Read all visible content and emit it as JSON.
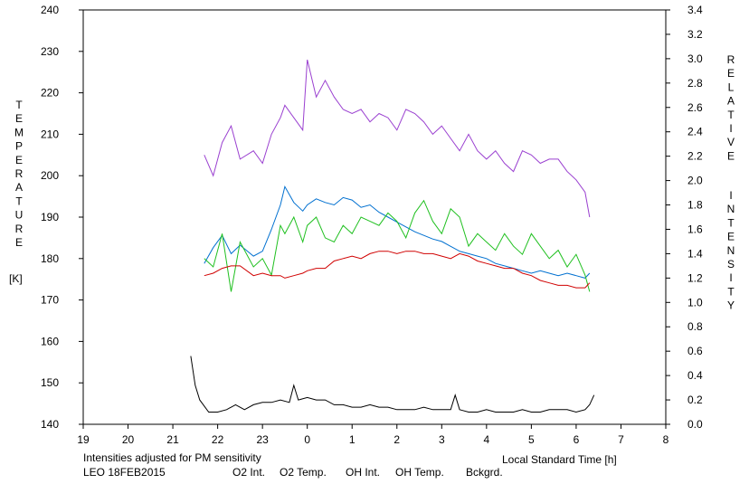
{
  "chart_data": {
    "type": "line",
    "left_axis_label_letters": [
      "T",
      "E",
      "M",
      "P",
      "E",
      "R",
      "A",
      "T",
      "U",
      "R",
      "E"
    ],
    "left_axis_unit": "[K]",
    "right_axis_label_word1": [
      "R",
      "E",
      "L",
      "A",
      "T",
      "I",
      "V",
      "E"
    ],
    "right_axis_label_word2": [
      "I",
      "N",
      "T",
      "E",
      "N",
      "S",
      "I",
      "T",
      "Y"
    ],
    "xlabel": "Local Standard Time [h]",
    "note": "Intensities adjusted for PM sensitivity",
    "station": "LEO 18FEB2015",
    "x_ticks": [
      19,
      20,
      21,
      22,
      23,
      0,
      1,
      2,
      3,
      4,
      5,
      6,
      7,
      8
    ],
    "xlim": [
      19,
      32
    ],
    "y_left_ticks": [
      140,
      150,
      160,
      170,
      180,
      190,
      200,
      210,
      220,
      230,
      240
    ],
    "y_left_lim": [
      140,
      240
    ],
    "y_right_ticks": [
      "0.0",
      "0.2",
      "0.4",
      "0.6",
      "0.8",
      "1.0",
      "1.2",
      "1.4",
      "1.6",
      "1.8",
      "2.0",
      "2.2",
      "2.4",
      "2.6",
      "2.8",
      "3.0",
      "3.2",
      "3.4"
    ],
    "y_right_lim": [
      0,
      3.4
    ],
    "legend": [
      {
        "key": "o2int",
        "label": "O2 Int.",
        "color": "#0070d0"
      },
      {
        "key": "o2temp",
        "label": "O2 Temp.",
        "color": "#9a40d0"
      },
      {
        "key": "ohint",
        "label": "OH Int.",
        "color": "#d00000"
      },
      {
        "key": "ohtemp",
        "label": "OH Temp.",
        "color": "#20c020"
      },
      {
        "key": "bck",
        "label": "Bckgrd.",
        "color": "#000000"
      }
    ],
    "note_color": "#20c020",
    "series": [
      {
        "key": "o2temp",
        "axis": "left",
        "color": "#9a40d0",
        "x": [
          21.7,
          21.9,
          22.1,
          22.3,
          22.5,
          22.8,
          23.0,
          23.2,
          23.4,
          23.5,
          23.7,
          23.9,
          24.0,
          24.2,
          24.4,
          24.6,
          24.8,
          25.0,
          25.2,
          25.4,
          25.6,
          25.8,
          26.0,
          26.2,
          26.4,
          26.6,
          26.8,
          27.0,
          27.2,
          27.4,
          27.6,
          27.8,
          28.0,
          28.2,
          28.4,
          28.6,
          28.8,
          29.0,
          29.2,
          29.4,
          29.6,
          29.8,
          30.0,
          30.2,
          30.3
        ],
        "y": [
          205,
          200,
          208,
          212,
          204,
          206,
          203,
          210,
          214,
          217,
          214,
          211,
          228,
          219,
          223,
          219,
          216,
          215,
          216,
          213,
          215,
          214,
          211,
          216,
          215,
          213,
          210,
          212,
          209,
          206,
          210,
          206,
          204,
          206,
          203,
          201,
          206,
          205,
          203,
          204,
          204,
          201,
          199,
          196,
          190
        ]
      },
      {
        "key": "o2int",
        "axis": "right",
        "color": "#0070d0",
        "x": [
          21.7,
          21.9,
          22.1,
          22.3,
          22.5,
          22.8,
          23.0,
          23.2,
          23.4,
          23.5,
          23.7,
          23.9,
          24.0,
          24.2,
          24.4,
          24.6,
          24.8,
          25.0,
          25.2,
          25.4,
          25.6,
          25.8,
          26.0,
          26.2,
          26.4,
          26.6,
          26.8,
          27.0,
          27.2,
          27.4,
          27.6,
          27.8,
          28.0,
          28.2,
          28.4,
          28.6,
          28.8,
          29.0,
          29.2,
          29.4,
          29.6,
          29.8,
          30.0,
          30.2,
          30.3
        ],
        "y": [
          1.32,
          1.45,
          1.55,
          1.4,
          1.47,
          1.38,
          1.42,
          1.6,
          1.8,
          1.95,
          1.82,
          1.75,
          1.8,
          1.85,
          1.82,
          1.8,
          1.86,
          1.84,
          1.78,
          1.8,
          1.74,
          1.7,
          1.66,
          1.62,
          1.58,
          1.55,
          1.52,
          1.5,
          1.46,
          1.42,
          1.4,
          1.38,
          1.36,
          1.32,
          1.3,
          1.28,
          1.26,
          1.24,
          1.26,
          1.24,
          1.22,
          1.24,
          1.22,
          1.2,
          1.24
        ]
      },
      {
        "key": "ohtemp",
        "axis": "left",
        "color": "#20c020",
        "x": [
          21.7,
          21.9,
          22.1,
          22.3,
          22.5,
          22.8,
          23.0,
          23.2,
          23.4,
          23.5,
          23.7,
          23.9,
          24.0,
          24.2,
          24.4,
          24.6,
          24.8,
          25.0,
          25.2,
          25.4,
          25.6,
          25.8,
          26.0,
          26.2,
          26.4,
          26.6,
          26.8,
          27.0,
          27.2,
          27.4,
          27.6,
          27.8,
          28.0,
          28.2,
          28.4,
          28.6,
          28.8,
          29.0,
          29.2,
          29.4,
          29.6,
          29.8,
          30.0,
          30.2,
          30.3
        ],
        "y": [
          180,
          178,
          186,
          172,
          184,
          178,
          180,
          176,
          188,
          186,
          190,
          184,
          188,
          190,
          185,
          184,
          188,
          186,
          190,
          189,
          188,
          191,
          189,
          185,
          191,
          194,
          189,
          186,
          192,
          190,
          183,
          186,
          184,
          182,
          186,
          183,
          181,
          186,
          183,
          180,
          182,
          178,
          181,
          176,
          172
        ]
      },
      {
        "key": "ohint",
        "axis": "right",
        "color": "#d00000",
        "x": [
          21.7,
          21.9,
          22.1,
          22.3,
          22.5,
          22.8,
          23.0,
          23.2,
          23.4,
          23.5,
          23.7,
          23.9,
          24.0,
          24.2,
          24.4,
          24.6,
          24.8,
          25.0,
          25.2,
          25.4,
          25.6,
          25.8,
          26.0,
          26.2,
          26.4,
          26.6,
          26.8,
          27.0,
          27.2,
          27.4,
          27.6,
          27.8,
          28.0,
          28.2,
          28.4,
          28.6,
          28.8,
          29.0,
          29.2,
          29.4,
          29.6,
          29.8,
          30.0,
          30.2,
          30.3
        ],
        "y": [
          1.22,
          1.24,
          1.28,
          1.3,
          1.3,
          1.22,
          1.24,
          1.22,
          1.22,
          1.2,
          1.22,
          1.24,
          1.26,
          1.28,
          1.28,
          1.34,
          1.36,
          1.38,
          1.36,
          1.4,
          1.42,
          1.42,
          1.4,
          1.42,
          1.42,
          1.4,
          1.4,
          1.38,
          1.36,
          1.4,
          1.38,
          1.34,
          1.32,
          1.3,
          1.28,
          1.28,
          1.24,
          1.22,
          1.18,
          1.16,
          1.14,
          1.14,
          1.12,
          1.12,
          1.16
        ]
      },
      {
        "key": "bck",
        "axis": "right",
        "color": "#000000",
        "x": [
          21.4,
          21.5,
          21.6,
          21.8,
          22.0,
          22.2,
          22.4,
          22.6,
          22.8,
          23.0,
          23.2,
          23.4,
          23.6,
          23.7,
          23.8,
          24.0,
          24.2,
          24.4,
          24.6,
          24.8,
          25.0,
          25.2,
          25.4,
          25.6,
          25.8,
          26.0,
          26.2,
          26.4,
          26.6,
          26.8,
          27.0,
          27.2,
          27.3,
          27.4,
          27.6,
          27.8,
          28.0,
          28.2,
          28.4,
          28.6,
          28.8,
          29.0,
          29.2,
          29.4,
          29.6,
          29.8,
          30.0,
          30.2,
          30.3,
          30.4
        ],
        "y": [
          0.56,
          0.32,
          0.2,
          0.1,
          0.1,
          0.12,
          0.16,
          0.12,
          0.16,
          0.18,
          0.18,
          0.2,
          0.18,
          0.32,
          0.2,
          0.22,
          0.2,
          0.2,
          0.16,
          0.16,
          0.14,
          0.14,
          0.16,
          0.14,
          0.14,
          0.12,
          0.12,
          0.12,
          0.14,
          0.12,
          0.12,
          0.12,
          0.24,
          0.12,
          0.1,
          0.1,
          0.12,
          0.1,
          0.1,
          0.1,
          0.12,
          0.1,
          0.1,
          0.12,
          0.12,
          0.12,
          0.1,
          0.12,
          0.16,
          0.24
        ]
      }
    ]
  }
}
